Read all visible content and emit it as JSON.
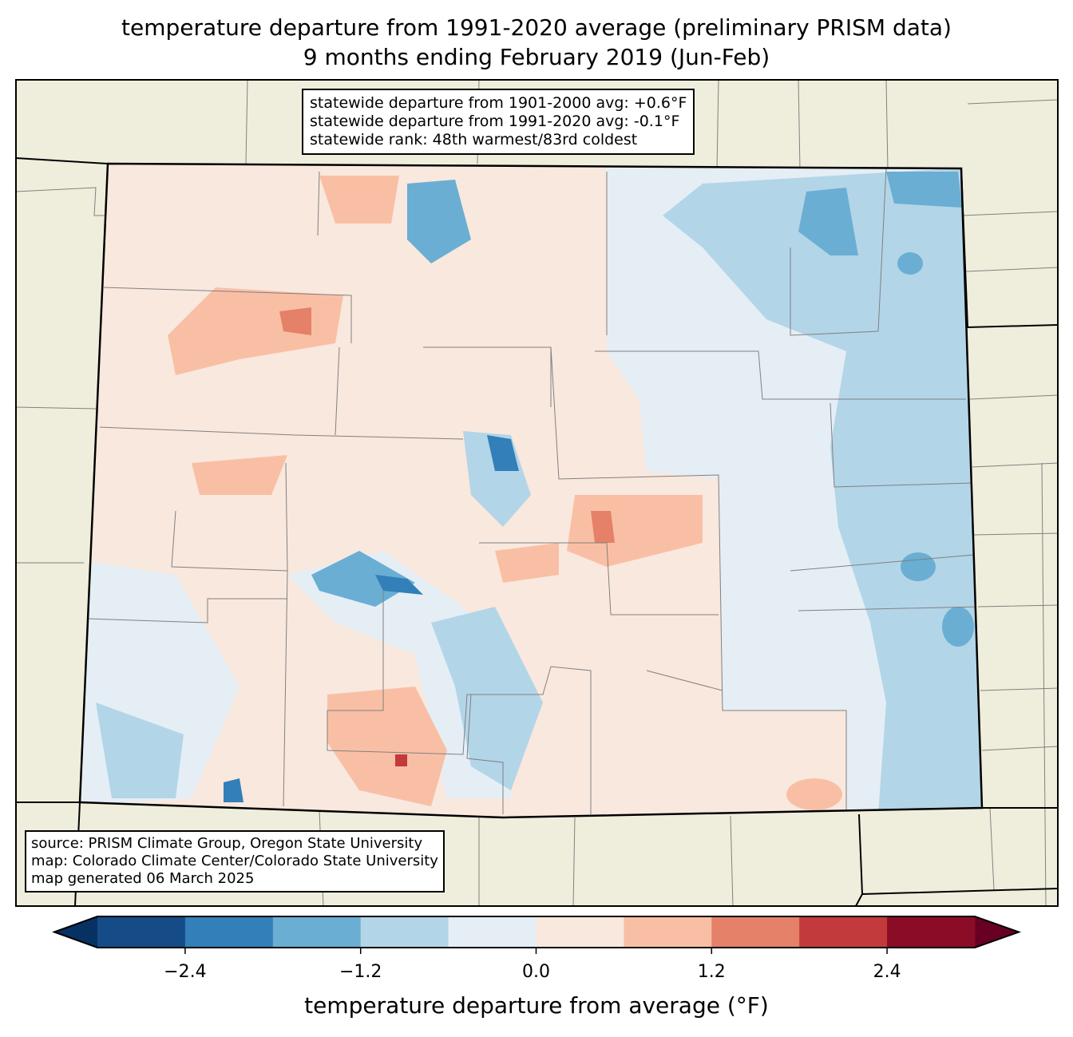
{
  "title": {
    "line1": "temperature departure from 1991-2020 average (preliminary PRISM data)",
    "line2": "9 months ending February 2019 (Jun-Feb)"
  },
  "stats_box": {
    "line1": "statewide departure from 1901-2000 avg: +0.6°F",
    "line2": "statewide departure from 1991-2020 avg: -0.1°F",
    "line3": "statewide rank: 48th warmest/83rd coldest"
  },
  "source_box": {
    "line1": "source: PRISM Climate Group, Oregon State University",
    "line2": "map: Colorado Climate Center/Colorado State University",
    "line3": "map generated 06 March 2025"
  },
  "colorbar": {
    "label": "temperature departure from average (°F)",
    "min": -3.0,
    "max": 3.0,
    "bins": [
      {
        "from": -3.0,
        "to": -2.4,
        "color": "#154b87"
      },
      {
        "from": -2.4,
        "to": -1.8,
        "color": "#327fb9"
      },
      {
        "from": -1.8,
        "to": -1.2,
        "color": "#6aaed3"
      },
      {
        "from": -1.2,
        "to": -0.6,
        "color": "#b3d5e8"
      },
      {
        "from": -0.6,
        "to": 0.0,
        "color": "#e5eef5"
      },
      {
        "from": 0.0,
        "to": 0.6,
        "color": "#f9e8de"
      },
      {
        "from": 0.6,
        "to": 1.2,
        "color": "#f9bfa5"
      },
      {
        "from": 1.2,
        "to": 1.8,
        "color": "#e48168"
      },
      {
        "from": 1.8,
        "to": 2.4,
        "color": "#c33a3c"
      },
      {
        "from": 2.4,
        "to": 3.0,
        "color": "#8a0c27"
      }
    ],
    "under_color": "#083163",
    "over_color": "#680024",
    "ticks": [
      {
        "value": -2.4,
        "label": "−2.4"
      },
      {
        "value": -1.2,
        "label": "−1.2"
      },
      {
        "value": 0.0,
        "label": "0.0"
      },
      {
        "value": 1.2,
        "label": "1.2"
      },
      {
        "value": 2.4,
        "label": "2.4"
      }
    ]
  },
  "colors": {
    "land": "#efeedc",
    "county_line": "#808080"
  }
}
